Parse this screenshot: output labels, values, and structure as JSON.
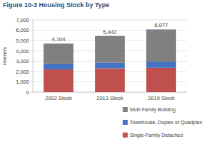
{
  "chart_data": {
    "type": "bar",
    "title": "Figure 10-3 Housing Stock by Type",
    "y_label": "Homes",
    "categories": [
      "2002 Stock",
      "2013 Stock",
      "2019 Stock"
    ],
    "series": [
      {
        "name": "Single-Family Detached",
        "color": "#c0504d",
        "values": [
          2200,
          2300,
          2350
        ]
      },
      {
        "name": "Townhouse, Duplex or Quadplex",
        "color": "#4472c4",
        "values": [
          550,
          550,
          600
        ]
      },
      {
        "name": "Multi Family Building",
        "color": "#808080",
        "values": [
          1954,
          2592,
          3127
        ]
      }
    ],
    "totals": [
      4704,
      5442,
      6077
    ],
    "total_labels": [
      "4,704",
      "5,442",
      "6,077"
    ],
    "ylim": [
      0,
      7000
    ],
    "yticks": [
      0,
      {
        "value": 1000,
        "label": "1,000"
      },
      {
        "value": 2000,
        "label": "2,000"
      },
      {
        "value": 3000,
        "label": "3,000"
      },
      {
        "value": 4000,
        "label": "4,000"
      },
      {
        "value": 5000,
        "label": "5,000"
      },
      {
        "value": 6000,
        "label": "6,000"
      },
      {
        "value": 7000,
        "label": "7,000"
      }
    ],
    "stacked": true,
    "grid": true,
    "legend": "bottom"
  }
}
